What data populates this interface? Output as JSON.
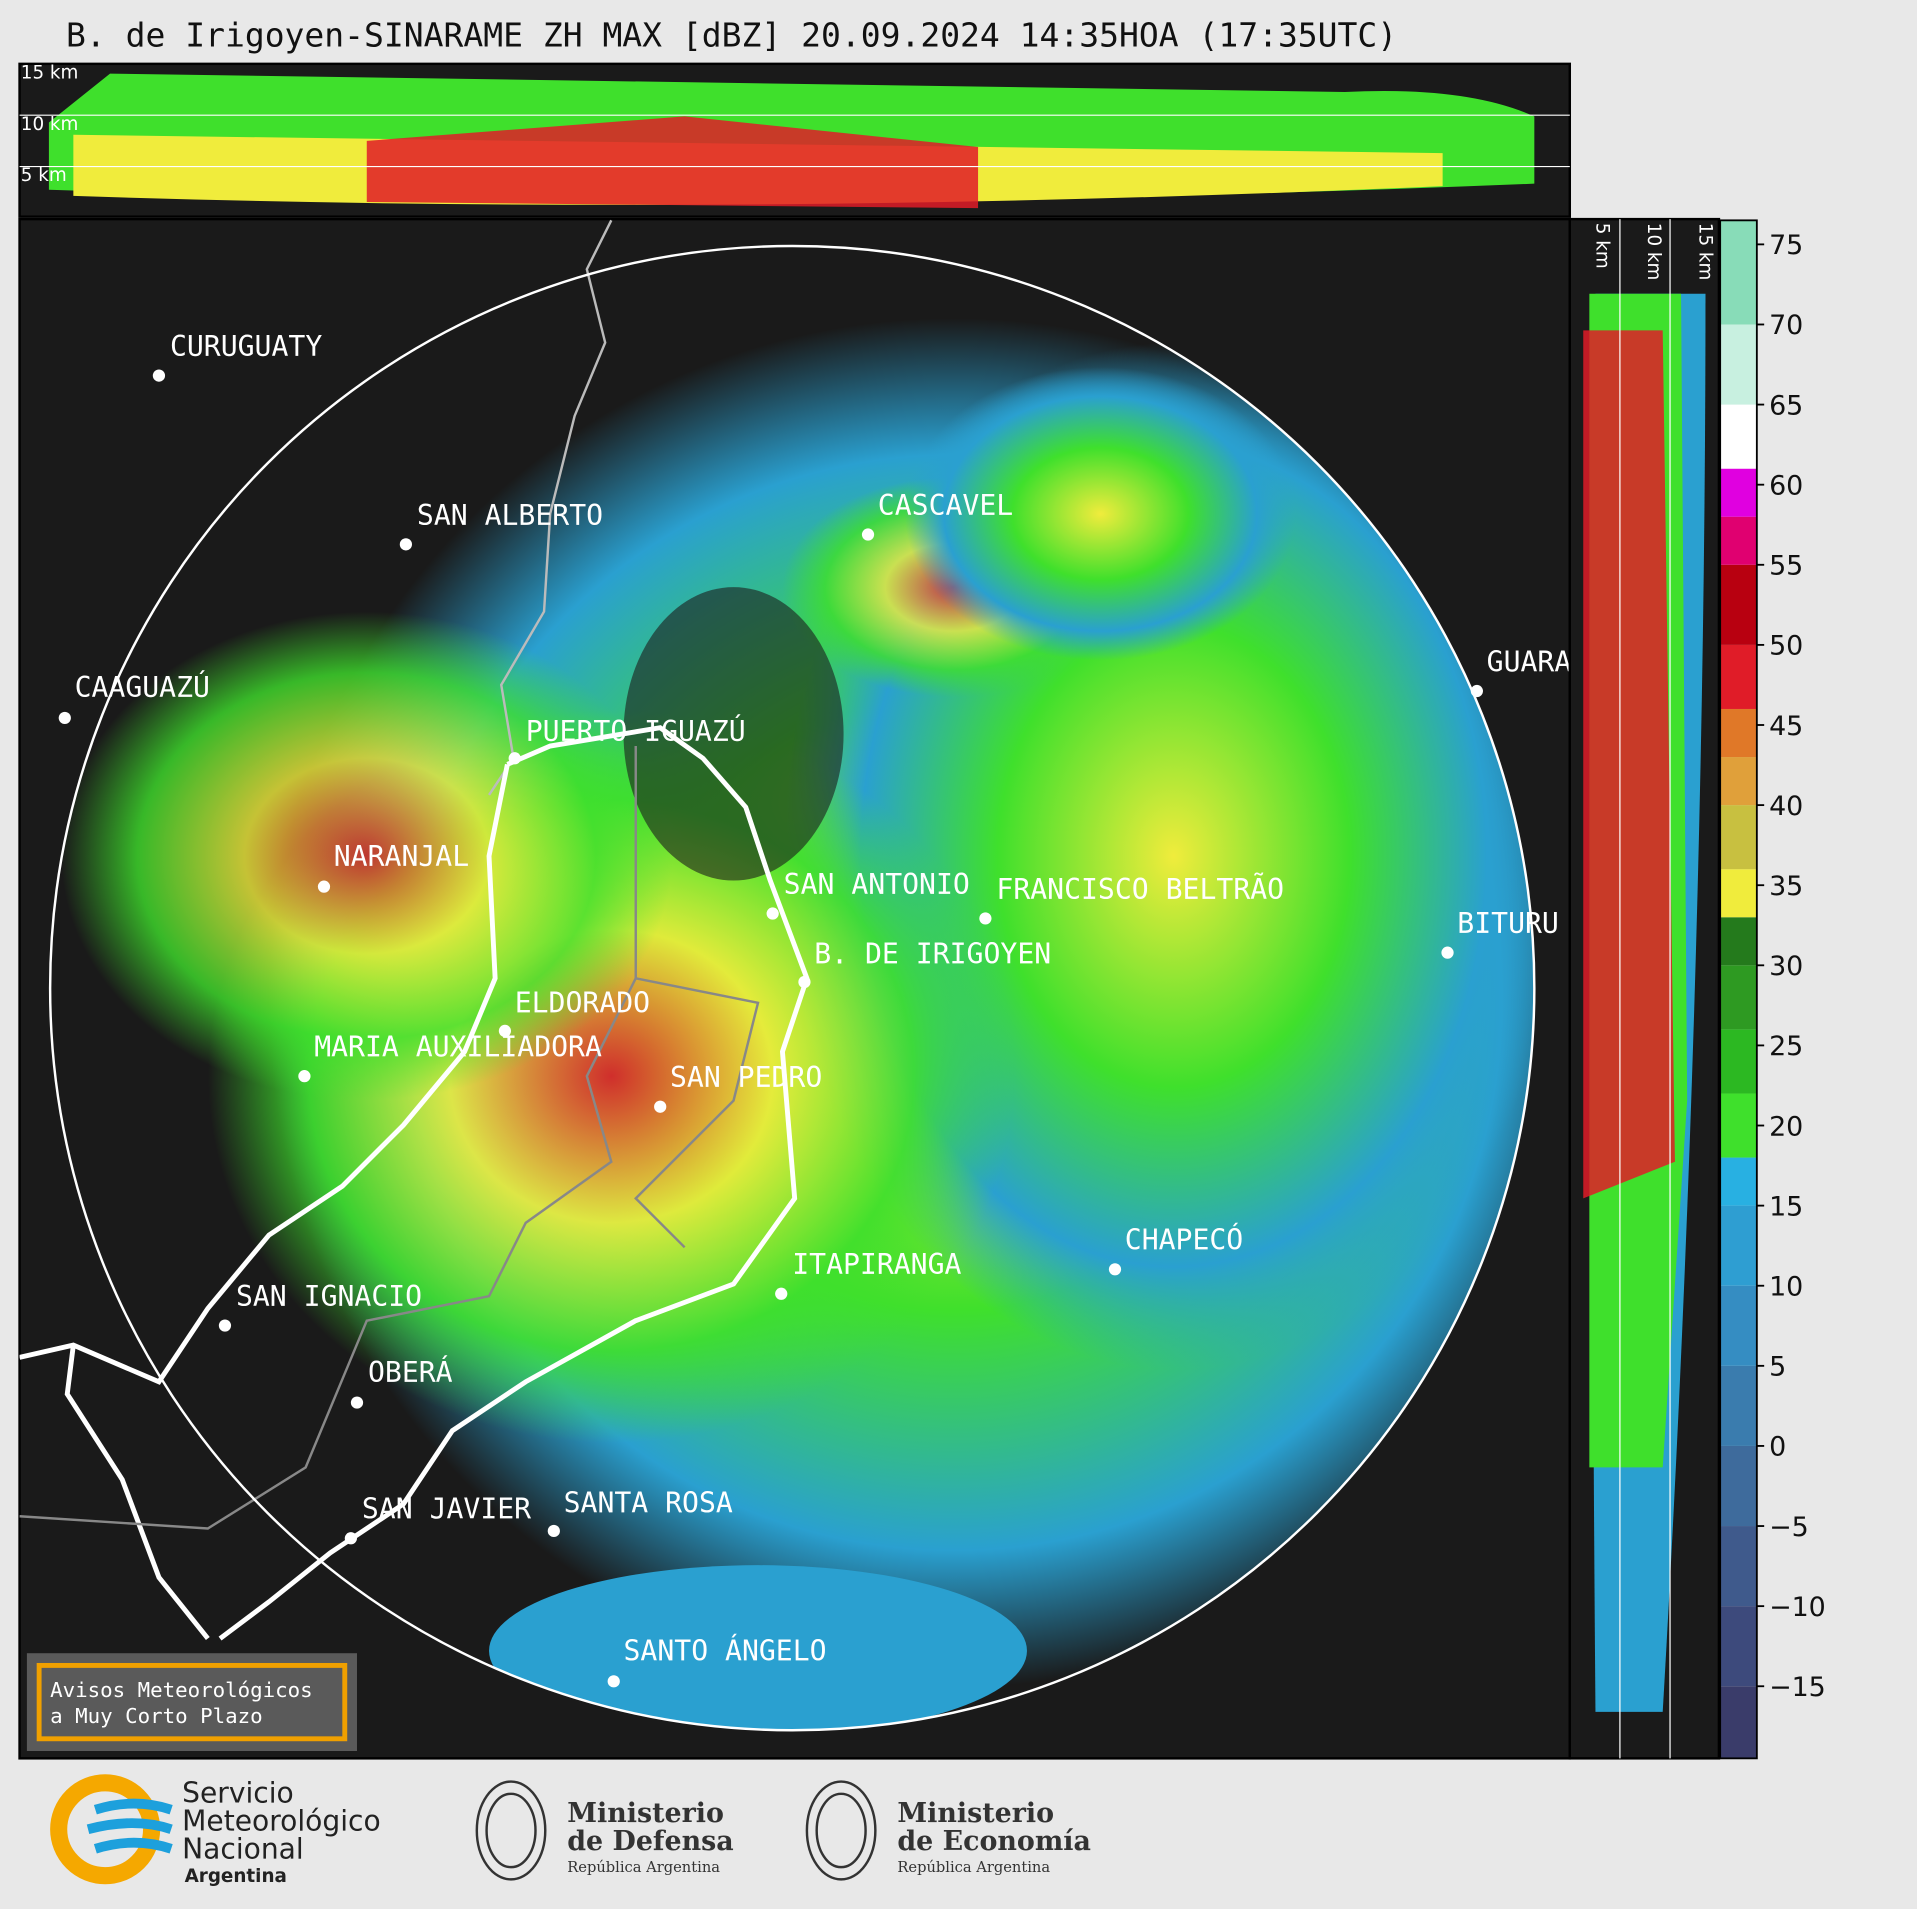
{
  "title": "B. de Irigoyen-SINARAME ZH MAX [dBZ] 20.09.2024 14:35HOA (17:35UTC)",
  "top_panel": {
    "height_labels": [
      "15 km",
      "10 km",
      "5 km"
    ]
  },
  "side_panel": {
    "height_labels": [
      "5 km",
      "10 km",
      "15 km"
    ]
  },
  "cities": [
    "CURUGUATY",
    "SAN ALBERTO",
    "CAAGUAZÚ",
    "PUERTO IGUAZÚ",
    "CASCAVEL",
    "GUARA",
    "NARANJAL",
    "SAN ANTONIO",
    "FRANCISCO BELTRÃO",
    "BITURU",
    "B. DE IRIGOYEN",
    "ELDORADO",
    "MARIA AUXILIADORA",
    "SAN PEDRO",
    "CHAPECÓ",
    "ITAPIRANGA",
    "SAN IGNACIO",
    "OBERÁ",
    "SAN JAVIER",
    "SANTA ROSA",
    "SANTO ÁNGELO"
  ],
  "warning_box": {
    "lines": [
      "Avisos Meteorológicos",
      "a Muy Corto Plazo"
    ]
  },
  "colorbar": {
    "lim": [
      -19.5,
      76.5
    ],
    "ticks": [
      75,
      70,
      65,
      60,
      55,
      50,
      45,
      40,
      35,
      30,
      25,
      20,
      15,
      10,
      5,
      0,
      {
        "value": -5,
        "label": "−5"
      },
      {
        "value": -10,
        "label": "−10"
      },
      {
        "value": -15,
        "label": "−15"
      }
    ],
    "bounds": [
      -19.5,
      -15,
      -10,
      -5,
      0,
      5,
      10,
      15,
      18,
      22,
      26,
      30,
      33,
      36,
      40,
      43,
      46,
      50,
      55,
      58,
      61,
      65,
      70,
      76.5
    ],
    "colors": [
      "#3a3c6a",
      "#3d4a7c",
      "#3f5a8c",
      "#3e6b9c",
      "#3a7cae",
      "#358dc2",
      "#2e9ed2",
      "#28b0e2",
      "#3fe02c",
      "#2cb822",
      "#2e9a22",
      "#247a1c",
      "#f0ec3c",
      "#c8c040",
      "#e0a03a",
      "#e07828",
      "#e01c28",
      "#b80010",
      "#e00070",
      "#e000e0",
      "#ffffff",
      "#c8f0e0",
      "#88dcb8"
    ]
  },
  "logos": {
    "smn": [
      "Servicio",
      "Meteorológico",
      "Nacional",
      "Argentina"
    ],
    "defensa": [
      "Ministerio",
      "de Defensa",
      "República Argentina"
    ],
    "economia": [
      "Ministerio",
      "de Economía",
      "República Argentina"
    ]
  }
}
